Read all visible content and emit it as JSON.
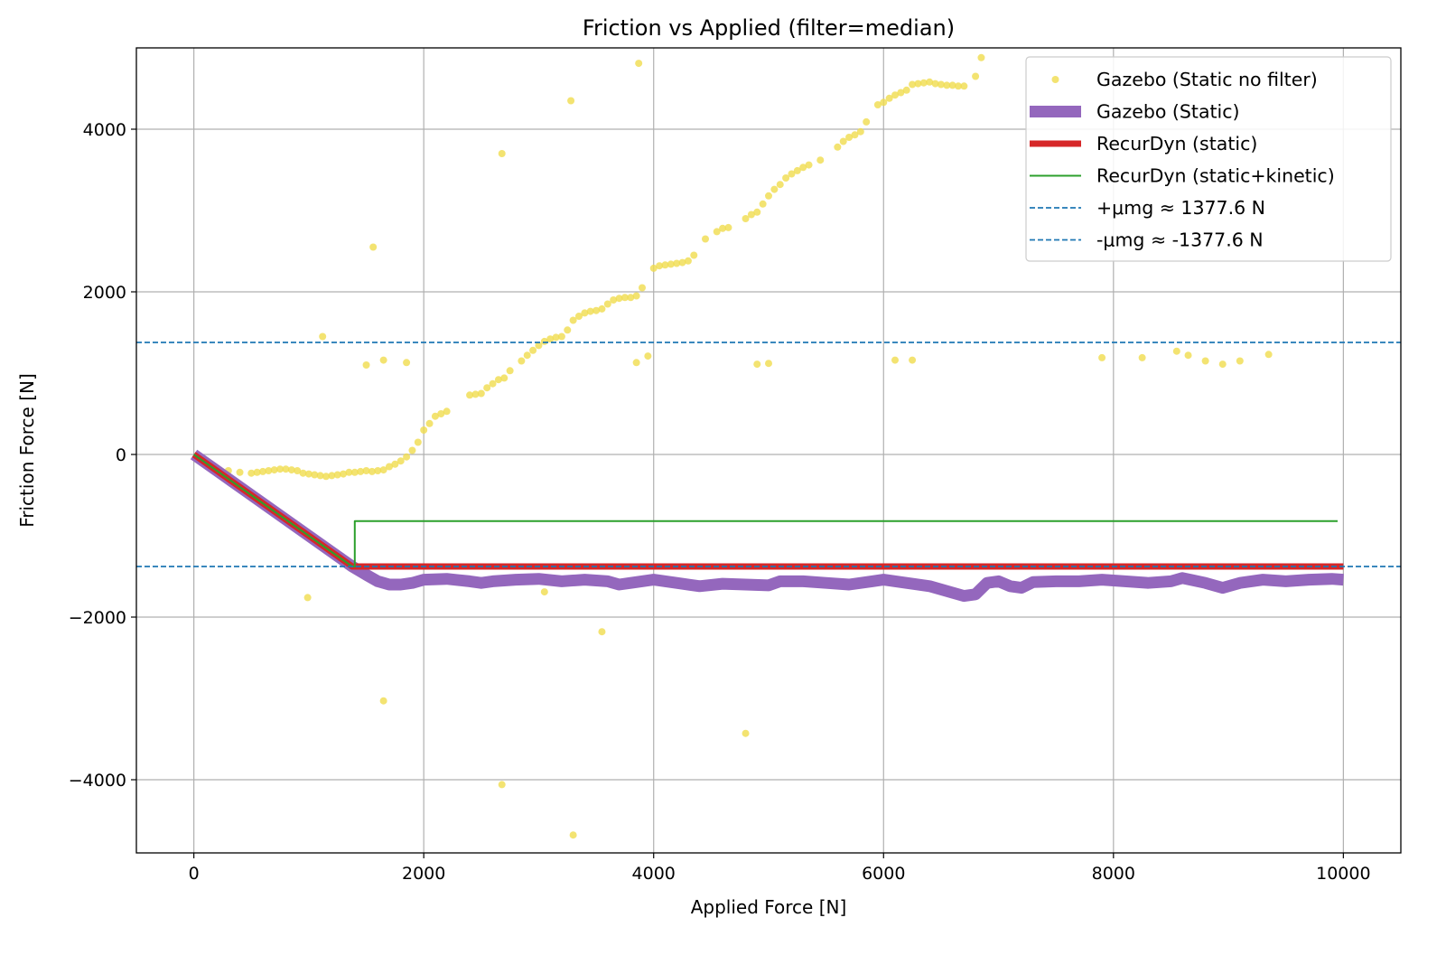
{
  "chart_data": {
    "type": "line",
    "title": "Friction vs Applied (filter=median)",
    "xlabel": "Applied Force [N]",
    "ylabel": "Friction Force [N]",
    "xlim": [
      -500,
      10500
    ],
    "ylim": [
      -4900,
      5000
    ],
    "xticks": [
      0,
      2000,
      4000,
      6000,
      8000,
      10000
    ],
    "xtick_labels": [
      "0",
      "2000",
      "4000",
      "6000",
      "8000",
      "10000"
    ],
    "yticks": [
      -4000,
      -2000,
      0,
      2000,
      4000
    ],
    "ytick_labels": [
      "−4000",
      "−2000",
      "0",
      "2000",
      "4000"
    ],
    "grid": true,
    "legend_position": "top-right",
    "colors": {
      "gazebo_no_filter": "#f0dc4e",
      "gazebo_static": "#9467bd",
      "recurdyn_static": "#d62728",
      "recurdyn_kinetic": "#2ca02c",
      "mu_lines": "#1f77b4"
    },
    "series": [
      {
        "name": "Gazebo (Static no filter)",
        "type": "scatter",
        "points": [
          [
            300,
            -200
          ],
          [
            400,
            -220
          ],
          [
            500,
            -230
          ],
          [
            550,
            -220
          ],
          [
            600,
            -210
          ],
          [
            650,
            -200
          ],
          [
            700,
            -190
          ],
          [
            750,
            -180
          ],
          [
            800,
            -180
          ],
          [
            850,
            -190
          ],
          [
            900,
            -200
          ],
          [
            950,
            -230
          ],
          [
            1000,
            -240
          ],
          [
            1050,
            -250
          ],
          [
            1100,
            -260
          ],
          [
            1150,
            -270
          ],
          [
            1200,
            -260
          ],
          [
            1250,
            -250
          ],
          [
            1300,
            -240
          ],
          [
            1350,
            -220
          ],
          [
            1400,
            -220
          ],
          [
            1450,
            -210
          ],
          [
            1500,
            -200
          ],
          [
            1550,
            -210
          ],
          [
            1600,
            -200
          ],
          [
            1650,
            -190
          ],
          [
            1700,
            -150
          ],
          [
            1750,
            -120
          ],
          [
            1800,
            -80
          ],
          [
            1850,
            -30
          ],
          [
            1900,
            50
          ],
          [
            1950,
            150
          ],
          [
            2000,
            300
          ],
          [
            2050,
            380
          ],
          [
            2100,
            470
          ],
          [
            2150,
            500
          ],
          [
            2200,
            530
          ],
          [
            2400,
            730
          ],
          [
            2450,
            740
          ],
          [
            2500,
            750
          ],
          [
            2550,
            820
          ],
          [
            2600,
            870
          ],
          [
            2650,
            920
          ],
          [
            2700,
            940
          ],
          [
            2750,
            1030
          ],
          [
            2850,
            1150
          ],
          [
            2900,
            1220
          ],
          [
            2950,
            1280
          ],
          [
            3000,
            1340
          ],
          [
            3050,
            1390
          ],
          [
            3100,
            1420
          ],
          [
            3150,
            1440
          ],
          [
            3200,
            1450
          ],
          [
            3250,
            1530
          ],
          [
            3300,
            1650
          ],
          [
            3350,
            1700
          ],
          [
            3400,
            1740
          ],
          [
            3450,
            1760
          ],
          [
            3500,
            1770
          ],
          [
            3550,
            1790
          ],
          [
            3600,
            1850
          ],
          [
            3650,
            1900
          ],
          [
            3700,
            1920
          ],
          [
            3750,
            1930
          ],
          [
            3800,
            1930
          ],
          [
            3850,
            1950
          ],
          [
            3900,
            2050
          ],
          [
            4000,
            2290
          ],
          [
            4050,
            2320
          ],
          [
            4100,
            2330
          ],
          [
            4150,
            2340
          ],
          [
            4200,
            2350
          ],
          [
            4250,
            2360
          ],
          [
            4300,
            2380
          ],
          [
            4350,
            2450
          ],
          [
            4450,
            2650
          ],
          [
            4550,
            2740
          ],
          [
            4600,
            2780
          ],
          [
            4650,
            2790
          ],
          [
            4800,
            2900
          ],
          [
            4850,
            2950
          ],
          [
            4900,
            2980
          ],
          [
            4950,
            3080
          ],
          [
            5000,
            3180
          ],
          [
            5050,
            3260
          ],
          [
            5100,
            3320
          ],
          [
            5150,
            3400
          ],
          [
            5200,
            3450
          ],
          [
            5250,
            3490
          ],
          [
            5300,
            3530
          ],
          [
            5350,
            3560
          ],
          [
            5450,
            3620
          ],
          [
            5600,
            3780
          ],
          [
            5650,
            3850
          ],
          [
            5700,
            3900
          ],
          [
            5750,
            3930
          ],
          [
            5800,
            3970
          ],
          [
            5850,
            4090
          ],
          [
            5950,
            4300
          ],
          [
            6000,
            4330
          ],
          [
            6050,
            4380
          ],
          [
            6100,
            4420
          ],
          [
            6150,
            4450
          ],
          [
            6200,
            4480
          ],
          [
            6250,
            4550
          ],
          [
            6300,
            4560
          ],
          [
            6350,
            4570
          ],
          [
            6400,
            4580
          ],
          [
            6450,
            4560
          ],
          [
            6500,
            4550
          ],
          [
            6550,
            4540
          ],
          [
            6600,
            4540
          ],
          [
            6650,
            4530
          ],
          [
            6700,
            4530
          ],
          [
            6800,
            4650
          ],
          [
            6850,
            4880
          ],
          [
            1120,
            1450
          ],
          [
            1560,
            2550
          ],
          [
            2680,
            3700
          ],
          [
            3280,
            4350
          ],
          [
            3870,
            4810
          ],
          [
            1500,
            1100
          ],
          [
            1650,
            1160
          ],
          [
            1850,
            1130
          ],
          [
            3850,
            1130
          ],
          [
            3950,
            1210
          ],
          [
            4900,
            1110
          ],
          [
            5000,
            1120
          ],
          [
            6100,
            1160
          ],
          [
            6250,
            1160
          ],
          [
            7900,
            1190
          ],
          [
            8250,
            1190
          ],
          [
            8550,
            1270
          ],
          [
            8650,
            1220
          ],
          [
            8800,
            1150
          ],
          [
            8950,
            1110
          ],
          [
            9100,
            1150
          ],
          [
            9350,
            1230
          ],
          [
            990,
            -1760
          ],
          [
            3050,
            -1690
          ],
          [
            3550,
            -2180
          ],
          [
            1650,
            -3030
          ],
          [
            4800,
            -3430
          ],
          [
            2680,
            -4060
          ],
          [
            3300,
            -4680
          ]
        ]
      },
      {
        "name": "Gazebo (Static)",
        "type": "line",
        "points": [
          [
            0,
            0
          ],
          [
            250,
            -250
          ],
          [
            500,
            -500
          ],
          [
            750,
            -750
          ],
          [
            1000,
            -1000
          ],
          [
            1250,
            -1250
          ],
          [
            1377,
            -1377
          ],
          [
            1500,
            -1480
          ],
          [
            1600,
            -1560
          ],
          [
            1700,
            -1600
          ],
          [
            1800,
            -1600
          ],
          [
            1900,
            -1580
          ],
          [
            2000,
            -1540
          ],
          [
            2200,
            -1530
          ],
          [
            2400,
            -1560
          ],
          [
            2500,
            -1580
          ],
          [
            2600,
            -1560
          ],
          [
            2800,
            -1540
          ],
          [
            3000,
            -1530
          ],
          [
            3200,
            -1560
          ],
          [
            3400,
            -1540
          ],
          [
            3600,
            -1560
          ],
          [
            3700,
            -1600
          ],
          [
            3800,
            -1580
          ],
          [
            4000,
            -1540
          ],
          [
            4200,
            -1580
          ],
          [
            4400,
            -1620
          ],
          [
            4600,
            -1590
          ],
          [
            4800,
            -1600
          ],
          [
            5000,
            -1610
          ],
          [
            5100,
            -1560
          ],
          [
            5300,
            -1560
          ],
          [
            5500,
            -1580
          ],
          [
            5700,
            -1600
          ],
          [
            5900,
            -1560
          ],
          [
            6000,
            -1540
          ],
          [
            6200,
            -1580
          ],
          [
            6400,
            -1620
          ],
          [
            6600,
            -1700
          ],
          [
            6700,
            -1740
          ],
          [
            6800,
            -1720
          ],
          [
            6900,
            -1580
          ],
          [
            7000,
            -1560
          ],
          [
            7100,
            -1620
          ],
          [
            7200,
            -1640
          ],
          [
            7300,
            -1570
          ],
          [
            7500,
            -1560
          ],
          [
            7700,
            -1560
          ],
          [
            7900,
            -1540
          ],
          [
            8100,
            -1560
          ],
          [
            8300,
            -1580
          ],
          [
            8500,
            -1560
          ],
          [
            8600,
            -1520
          ],
          [
            8800,
            -1580
          ],
          [
            8950,
            -1640
          ],
          [
            9100,
            -1580
          ],
          [
            9300,
            -1540
          ],
          [
            9500,
            -1560
          ],
          [
            9700,
            -1540
          ],
          [
            9900,
            -1530
          ],
          [
            10000,
            -1540
          ]
        ]
      },
      {
        "name": "RecurDyn (static)",
        "type": "line",
        "points": [
          [
            0,
            0
          ],
          [
            1377.6,
            -1377.6
          ],
          [
            10000,
            -1377.6
          ]
        ]
      },
      {
        "name": "RecurDyn (static+kinetic)",
        "type": "line",
        "points": [
          [
            0,
            0
          ],
          [
            1377.6,
            -1377.6
          ],
          [
            1400,
            -1377.6
          ],
          [
            1400,
            -820
          ],
          [
            9950,
            -820
          ]
        ]
      },
      {
        "name": "+μmg ≈ 1377.6 N",
        "type": "hline",
        "value": 1377.6
      },
      {
        "name": "-μmg ≈ -1377.6 N",
        "type": "hline",
        "value": -1377.6
      }
    ]
  }
}
